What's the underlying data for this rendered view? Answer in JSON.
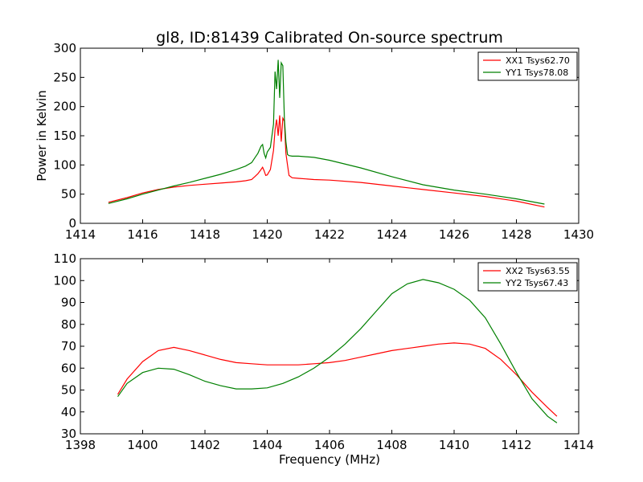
{
  "figure": {
    "title": "gl8, ID:81439 Calibrated On-source spectrum",
    "xlabel": "Frequency (MHz)",
    "ylabel": "Power in Kelvin"
  },
  "chart_data": [
    {
      "type": "line",
      "title": "gl8, ID:81439 Calibrated On-source spectrum",
      "xlabel": "",
      "ylabel": "Power in Kelvin",
      "xlim": [
        1414,
        1430
      ],
      "ylim": [
        0,
        300
      ],
      "xticks": [
        1414,
        1416,
        1418,
        1420,
        1422,
        1424,
        1426,
        1428,
        1430
      ],
      "yticks": [
        0,
        50,
        100,
        150,
        200,
        250,
        300
      ],
      "grid": false,
      "legend_position": "top-right",
      "series": [
        {
          "name": "XX1 Tsys62.70",
          "color": "#ff0000",
          "x": [
            1414.9,
            1415.5,
            1416,
            1416.5,
            1417,
            1417.5,
            1418,
            1418.5,
            1419,
            1419.3,
            1419.5,
            1419.6,
            1419.7,
            1419.8,
            1419.85,
            1419.9,
            1419.95,
            1420.0,
            1420.1,
            1420.2,
            1420.25,
            1420.3,
            1420.35,
            1420.4,
            1420.45,
            1420.5,
            1420.55,
            1420.6,
            1420.65,
            1420.7,
            1420.8,
            1421,
            1421.5,
            1422,
            1423,
            1424,
            1425,
            1426,
            1427,
            1428,
            1428.9
          ],
          "y": [
            36,
            44,
            52,
            58,
            62,
            65,
            67,
            69,
            71,
            73,
            75,
            80,
            85,
            92,
            96,
            90,
            82,
            83,
            92,
            125,
            160,
            178,
            150,
            185,
            140,
            180,
            175,
            120,
            100,
            82,
            78,
            77,
            75,
            74,
            70,
            64,
            58,
            52,
            46,
            38,
            28
          ]
        },
        {
          "name": "YY1 Tsys78.08",
          "color": "#008000",
          "x": [
            1414.9,
            1415.5,
            1416,
            1416.5,
            1417,
            1417.5,
            1418,
            1418.5,
            1419,
            1419.3,
            1419.5,
            1419.6,
            1419.7,
            1419.8,
            1419.85,
            1419.9,
            1419.95,
            1420.0,
            1420.1,
            1420.2,
            1420.25,
            1420.3,
            1420.35,
            1420.4,
            1420.45,
            1420.5,
            1420.55,
            1420.6,
            1420.65,
            1420.7,
            1420.8,
            1421,
            1421.5,
            1422,
            1423,
            1424,
            1425,
            1426,
            1427,
            1428,
            1428.9
          ],
          "y": [
            34,
            42,
            50,
            57,
            64,
            70,
            77,
            84,
            92,
            98,
            104,
            112,
            120,
            132,
            135,
            120,
            112,
            122,
            130,
            170,
            260,
            230,
            280,
            215,
            275,
            270,
            180,
            140,
            118,
            116,
            115,
            115,
            113,
            108,
            95,
            80,
            66,
            57,
            50,
            42,
            33
          ]
        }
      ]
    },
    {
      "type": "line",
      "title": "",
      "xlabel": "Frequency (MHz)",
      "ylabel": "",
      "xlim": [
        1398,
        1414
      ],
      "ylim": [
        30,
        110
      ],
      "xticks": [
        1398,
        1400,
        1402,
        1404,
        1406,
        1408,
        1410,
        1412,
        1414
      ],
      "yticks": [
        30,
        40,
        50,
        60,
        70,
        80,
        90,
        100,
        110
      ],
      "grid": false,
      "legend_position": "top-right",
      "series": [
        {
          "name": "XX2 Tsys63.55",
          "color": "#ff0000",
          "x": [
            1399.2,
            1399.5,
            1400,
            1400.5,
            1401,
            1401.5,
            1402,
            1402.5,
            1403,
            1403.5,
            1404,
            1404.5,
            1405,
            1405.5,
            1406,
            1406.5,
            1407,
            1407.5,
            1408,
            1408.5,
            1409,
            1409.5,
            1410,
            1410.5,
            1411,
            1411.5,
            1412,
            1412.5,
            1413,
            1413.3
          ],
          "y": [
            48,
            55,
            63,
            68,
            69.5,
            68,
            66,
            64,
            62.5,
            62,
            61.5,
            61.5,
            61.5,
            62,
            62.5,
            63.5,
            65,
            66.5,
            68,
            69,
            70,
            71,
            71.5,
            71,
            69,
            64,
            57,
            49,
            42,
            38
          ]
        },
        {
          "name": "YY2 Tsys67.43",
          "color": "#008000",
          "x": [
            1399.2,
            1399.5,
            1400,
            1400.5,
            1401,
            1401.5,
            1402,
            1402.5,
            1403,
            1403.5,
            1404,
            1404.5,
            1405,
            1405.5,
            1406,
            1406.5,
            1407,
            1407.5,
            1408,
            1408.5,
            1409,
            1409.5,
            1410,
            1410.5,
            1411,
            1411.5,
            1412,
            1412.5,
            1413,
            1413.3
          ],
          "y": [
            47,
            53,
            58,
            60,
            59.5,
            57,
            54,
            52,
            50.5,
            50.5,
            51,
            53,
            56,
            60,
            65,
            71,
            78,
            86,
            94,
            98.5,
            100.5,
            99,
            96,
            91,
            83,
            71,
            58,
            46,
            38,
            35
          ]
        }
      ]
    }
  ]
}
